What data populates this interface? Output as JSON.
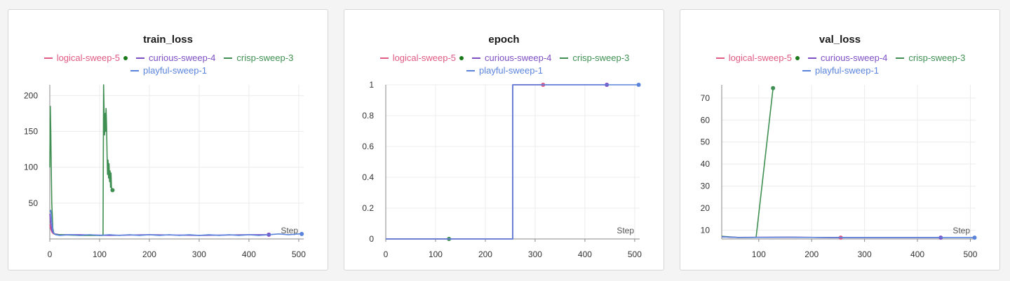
{
  "colors": {
    "logical-sweep-5": "#e05a84",
    "curious-sweep-4": "#7e4fc4",
    "crisp-sweep-3": "#3f8f52",
    "playful-sweep-1": "#5a84dc",
    "active_dot": "#1a7a1a",
    "grid": "#ececec",
    "axis": "#888888"
  },
  "legend": [
    {
      "name": "logical-sweep-5",
      "active": true
    },
    {
      "name": "curious-sweep-4",
      "active": false
    },
    {
      "name": "crisp-sweep-3",
      "active": false
    },
    {
      "name": "playful-sweep-1",
      "active": false
    }
  ],
  "chart_data": [
    {
      "type": "line",
      "title": "train_loss",
      "xlabel": "Step",
      "ylabel": "",
      "xlim": [
        0,
        510
      ],
      "ylim": [
        0,
        215
      ],
      "xticks": [
        0,
        100,
        200,
        300,
        400,
        500
      ],
      "yticks": [
        50,
        100,
        150,
        200
      ],
      "series": [
        {
          "name": "logical-sweep-5",
          "x": [
            0,
            2,
            4,
            6,
            8,
            12
          ],
          "y": [
            20,
            14,
            10,
            8,
            7,
            6
          ]
        },
        {
          "name": "curious-sweep-4",
          "x": [
            0,
            2,
            4,
            6,
            10,
            20,
            60,
            120,
            200,
            300,
            400,
            440
          ],
          "y": [
            35,
            22,
            12,
            9,
            7,
            6,
            6,
            5,
            6,
            5,
            6,
            6
          ],
          "marker_at": 440
        },
        {
          "name": "crisp-sweep-3",
          "x": [
            0,
            1,
            2,
            3,
            4,
            6,
            8,
            12,
            20,
            60,
            100,
            107,
            108,
            109,
            110,
            111,
            112,
            113,
            114,
            115,
            116,
            117,
            118,
            119,
            120,
            121,
            122,
            123,
            124,
            125,
            126
          ],
          "y": [
            100,
            185,
            150,
            95,
            50,
            15,
            8,
            6,
            6,
            5,
            5,
            5,
            215,
            180,
            145,
            175,
            150,
            182,
            160,
            120,
            90,
            110,
            85,
            105,
            80,
            95,
            72,
            92,
            70,
            68,
            68
          ],
          "marker_at": 126
        },
        {
          "name": "playful-sweep-1",
          "x": [
            0,
            2,
            4,
            6,
            8,
            12,
            20,
            40,
            60,
            80,
            100,
            120,
            140,
            160,
            180,
            200,
            220,
            240,
            260,
            280,
            300,
            320,
            340,
            360,
            380,
            400,
            420,
            440,
            460,
            480,
            500,
            506
          ],
          "y": [
            38,
            40,
            25,
            12,
            8,
            6,
            5,
            6,
            5,
            6,
            5,
            6,
            5,
            6,
            5,
            6,
            5,
            6,
            5,
            6,
            5,
            6,
            5,
            6,
            5,
            6,
            5,
            6,
            7,
            6,
            7,
            7
          ],
          "marker_at": 506
        }
      ]
    },
    {
      "type": "line",
      "title": "epoch",
      "xlabel": "Step",
      "ylabel": "",
      "xlim": [
        0,
        510
      ],
      "ylim": [
        0,
        1
      ],
      "xticks": [
        0,
        100,
        200,
        300,
        400,
        500
      ],
      "yticks": [
        0,
        0.2,
        0.4,
        0.6,
        0.8,
        1
      ],
      "ytick_labels": [
        "0",
        "0.2",
        "0.4",
        "0.6",
        "0.8",
        "1"
      ],
      "series": [
        {
          "name": "crisp-sweep-3",
          "x": [
            0,
            127
          ],
          "y": [
            0,
            0
          ],
          "marker_at": 127
        },
        {
          "name": "logical-sweep-5",
          "x": [
            0,
            255,
            255,
            316
          ],
          "y": [
            0,
            0,
            1,
            1
          ],
          "marker_at": 316
        },
        {
          "name": "curious-sweep-4",
          "x": [
            0,
            255,
            255,
            444
          ],
          "y": [
            0,
            0,
            1,
            1
          ],
          "marker_at": 444
        },
        {
          "name": "playful-sweep-1",
          "x": [
            0,
            255,
            255,
            508
          ],
          "y": [
            0,
            0,
            1,
            1
          ],
          "marker_at": 508
        }
      ]
    },
    {
      "type": "line",
      "title": "val_loss",
      "xlabel": "Step",
      "ylabel": "",
      "xlim": [
        30,
        510
      ],
      "ylim": [
        6,
        76
      ],
      "xticks": [
        100,
        200,
        300,
        400,
        500
      ],
      "yticks": [
        10,
        20,
        30,
        40,
        50,
        60,
        70
      ],
      "series": [
        {
          "name": "crisp-sweep-3",
          "x": [
            30,
            60,
            95,
            127
          ],
          "y": [
            7.2,
            6.7,
            6.7,
            74.5
          ],
          "marker_at": 127
        },
        {
          "name": "logical-sweep-5",
          "x": [
            30,
            60,
            160,
            255
          ],
          "y": [
            7.0,
            6.7,
            6.8,
            6.6
          ],
          "marker_at": 255
        },
        {
          "name": "curious-sweep-4",
          "x": [
            30,
            60,
            160,
            255,
            444
          ],
          "y": [
            7.0,
            6.7,
            6.8,
            6.6,
            6.6
          ],
          "marker_at": 444
        },
        {
          "name": "playful-sweep-1",
          "x": [
            30,
            60,
            160,
            255,
            444,
            508
          ],
          "y": [
            7.0,
            6.7,
            6.8,
            6.6,
            6.6,
            6.6
          ],
          "marker_at": 508
        }
      ]
    }
  ]
}
